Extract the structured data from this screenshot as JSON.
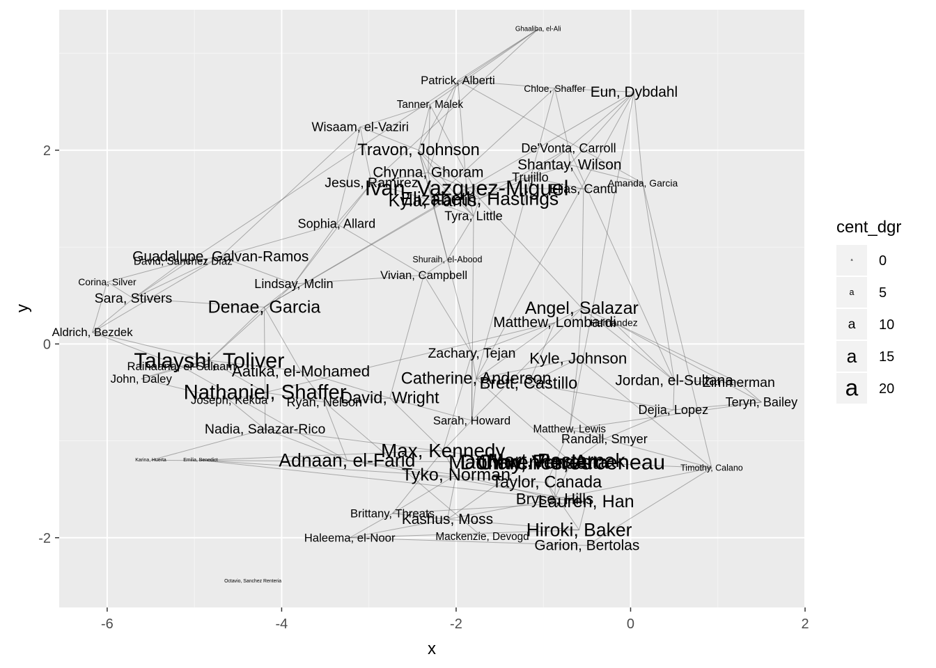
{
  "chart_data": {
    "type": "scatter",
    "title": "",
    "xlabel": "x",
    "ylabel": "y",
    "xlim": [
      -6.55,
      2.0
    ],
    "ylim": [
      -2.72,
      3.45
    ],
    "x_ticks": [
      -6,
      -4,
      -2,
      0,
      2
    ],
    "x_tick_labels": [
      "-6",
      "-4",
      "-2",
      "0",
      "2"
    ],
    "y_ticks": [
      -2,
      0,
      2
    ],
    "y_tick_labels": [
      "-2",
      "0",
      "2"
    ],
    "grid": true,
    "legend": {
      "title": "cent_dgr",
      "position": "right",
      "glyph": "a",
      "entries": [
        {
          "label": "0",
          "size": 0
        },
        {
          "label": "5",
          "size": 5
        },
        {
          "label": "10",
          "size": 10
        },
        {
          "label": "15",
          "size": 15
        },
        {
          "label": "20",
          "size": 20
        }
      ]
    },
    "nodes": [
      {
        "label": "Ghaaliba, el-Ali",
        "x": -1.06,
        "y": 3.25,
        "size": 3
      },
      {
        "label": "Patrick, Alberti",
        "x": -1.98,
        "y": 2.72,
        "size": 8
      },
      {
        "label": "Chloe, Shaffer",
        "x": -0.87,
        "y": 2.64,
        "size": 6
      },
      {
        "label": "Eun, Dybdahl",
        "x": 0.04,
        "y": 2.6,
        "size": 11
      },
      {
        "label": "Tanner, Malek",
        "x": -2.3,
        "y": 2.47,
        "size": 7
      },
      {
        "label": "Wisaam, el-Vaziri",
        "x": -3.1,
        "y": 2.24,
        "size": 9
      },
      {
        "label": "Travon, Johnson",
        "x": -2.43,
        "y": 2.0,
        "size": 13
      },
      {
        "label": "De'Vonta, Carroll",
        "x": -0.71,
        "y": 2.02,
        "size": 9
      },
      {
        "label": "Shantay, Wilson",
        "x": -0.7,
        "y": 1.85,
        "size": 11
      },
      {
        "label": "Chynna, Ghoram",
        "x": -2.32,
        "y": 1.77,
        "size": 11
      },
      {
        "label": "Trujillo",
        "x": -1.15,
        "y": 1.72,
        "size": 9
      },
      {
        "label": "Amanda, Garcia",
        "x": 0.14,
        "y": 1.66,
        "size": 6
      },
      {
        "label": "Jesus, Ramirez",
        "x": -2.97,
        "y": 1.66,
        "size": 10
      },
      {
        "label": "Ivan, Vazquez-Miguel",
        "x": -1.88,
        "y": 1.61,
        "size": 18
      },
      {
        "label": "Elias, Cantu",
        "x": -0.54,
        "y": 1.6,
        "size": 9
      },
      {
        "label": "Kyla, Farris",
        "x": -2.27,
        "y": 1.48,
        "size": 14
      },
      {
        "label": "Elizabeth, Hastings",
        "x": -1.73,
        "y": 1.5,
        "size": 15
      },
      {
        "label": "Tyra, Little",
        "x": -1.8,
        "y": 1.32,
        "size": 9
      },
      {
        "label": "Sophia, Allard",
        "x": -3.37,
        "y": 1.24,
        "size": 9
      },
      {
        "label": "Guadalupe, Galvan-Ramos",
        "x": -4.7,
        "y": 0.9,
        "size": 11
      },
      {
        "label": "David, Sanchez Diaz",
        "x": -5.13,
        "y": 0.85,
        "size": 7
      },
      {
        "label": "Shuraih, el-Abood",
        "x": -2.1,
        "y": 0.87,
        "size": 5
      },
      {
        "label": "Vivian, Campbell",
        "x": -2.37,
        "y": 0.71,
        "size": 8
      },
      {
        "label": "Corina, Silver",
        "x": -6.0,
        "y": 0.64,
        "size": 6
      },
      {
        "label": "Lindsay, Mclin",
        "x": -3.86,
        "y": 0.62,
        "size": 9
      },
      {
        "label": "Sara, Stivers",
        "x": -5.7,
        "y": 0.47,
        "size": 10
      },
      {
        "label": "Denae, Garcia",
        "x": -4.2,
        "y": 0.38,
        "size": 14
      },
      {
        "label": "Angel, Salazar",
        "x": -0.56,
        "y": 0.37,
        "size": 14
      },
      {
        "label": "Matthew, Lombardi",
        "x": -0.87,
        "y": 0.22,
        "size": 11
      },
      {
        "label": "Hernandez",
        "x": -0.19,
        "y": 0.22,
        "size": 6
      },
      {
        "label": "Aldrich, Bezdek",
        "x": -6.17,
        "y": 0.12,
        "size": 8
      },
      {
        "label": "Zachary, Tejan",
        "x": -1.82,
        "y": -0.1,
        "size": 10
      },
      {
        "label": "Kyle, Johnson",
        "x": -0.6,
        "y": -0.15,
        "size": 12
      },
      {
        "label": "Talayshi, Toliver",
        "x": -4.83,
        "y": -0.17,
        "size": 18
      },
      {
        "label": "Raihaana, el-Salaam",
        "x": -5.15,
        "y": -0.23,
        "size": 8
      },
      {
        "label": "Aatika, el-Mohamed",
        "x": -3.78,
        "y": -0.28,
        "size": 12
      },
      {
        "label": "Catherine, Anderson",
        "x": -1.77,
        "y": -0.36,
        "size": 13
      },
      {
        "label": "Jordan, el-Sultana",
        "x": 0.5,
        "y": -0.38,
        "size": 11
      },
      {
        "label": "Zimmerman",
        "x": 1.24,
        "y": -0.4,
        "size": 10
      },
      {
        "label": "John, Daley",
        "x": -5.61,
        "y": -0.36,
        "size": 8
      },
      {
        "label": "Brett, Castillo",
        "x": -1.17,
        "y": -0.41,
        "size": 13
      },
      {
        "label": "Nathaniel, Shaffer",
        "x": -4.19,
        "y": -0.5,
        "size": 17
      },
      {
        "label": "David, Wright",
        "x": -2.76,
        "y": -0.56,
        "size": 13
      },
      {
        "label": "Joseph, Kekua",
        "x": -4.6,
        "y": -0.58,
        "size": 8
      },
      {
        "label": "Ryan, Nelson",
        "x": -3.51,
        "y": -0.6,
        "size": 9
      },
      {
        "label": "Teryn, Bailey",
        "x": 1.5,
        "y": -0.6,
        "size": 9
      },
      {
        "label": "Dejia, Lopez",
        "x": 0.49,
        "y": -0.68,
        "size": 9
      },
      {
        "label": "Sarah, Howard",
        "x": -1.82,
        "y": -0.79,
        "size": 8
      },
      {
        "label": "Nadia, Salazar-Rico",
        "x": -4.19,
        "y": -0.88,
        "size": 10
      },
      {
        "label": "Matthew, Lewis",
        "x": -0.7,
        "y": -0.88,
        "size": 7
      },
      {
        "label": "Randall, Smyer",
        "x": -0.3,
        "y": -0.98,
        "size": 9
      },
      {
        "label": "Max, Kennedy",
        "x": -2.15,
        "y": -1.1,
        "size": 16
      },
      {
        "label": "Adnaan, el-Farid",
        "x": -3.25,
        "y": -1.2,
        "size": 15
      },
      {
        "label": "Matthew, Vendetta",
        "x": -1.17,
        "y": -1.22,
        "size": 16
      },
      {
        "label": "Karina, Huerta",
        "x": -5.5,
        "y": -1.2,
        "size": 1
      },
      {
        "label": "Emilia, Benedict",
        "x": -4.93,
        "y": -1.2,
        "size": 1
      },
      {
        "label": "Donny, Flores",
        "x": -1.2,
        "y": -1.22,
        "size": 18
      },
      {
        "label": "Mart, Pasternak",
        "x": -0.85,
        "y": -1.2,
        "size": 16
      },
      {
        "label": "Clarence, Arceneau",
        "x": -0.68,
        "y": -1.22,
        "size": 18
      },
      {
        "label": "Timothy, Calano",
        "x": 0.93,
        "y": -1.28,
        "size": 5
      },
      {
        "label": "Tyko, Norman",
        "x": -2.0,
        "y": -1.35,
        "size": 14
      },
      {
        "label": "Taylor, Canada",
        "x": -0.96,
        "y": -1.43,
        "size": 13
      },
      {
        "label": "Bryse, Hills",
        "x": -0.87,
        "y": -1.6,
        "size": 12
      },
      {
        "label": "Lauren, Han",
        "x": -0.51,
        "y": -1.63,
        "size": 14
      },
      {
        "label": "Brittany, Threats",
        "x": -2.73,
        "y": -1.75,
        "size": 8
      },
      {
        "label": "Kashus, Moss",
        "x": -2.1,
        "y": -1.81,
        "size": 11
      },
      {
        "label": "Hiroki, Baker",
        "x": -0.59,
        "y": -1.92,
        "size": 15
      },
      {
        "label": "Haleema, el-Noor",
        "x": -3.22,
        "y": -2.0,
        "size": 8
      },
      {
        "label": "Mackenzie, Devogd",
        "x": -1.7,
        "y": -1.99,
        "size": 7
      },
      {
        "label": "Garion, Bertolas",
        "x": -0.5,
        "y": -2.08,
        "size": 11
      },
      {
        "label": "Octavio, Sanchez Renteria",
        "x": -4.33,
        "y": -2.45,
        "size": 1
      }
    ],
    "edges": [
      [
        0,
        1
      ],
      [
        0,
        4
      ],
      [
        0,
        12
      ],
      [
        0,
        25
      ],
      [
        1,
        2
      ],
      [
        1,
        6
      ],
      [
        1,
        13
      ],
      [
        1,
        9
      ],
      [
        2,
        3
      ],
      [
        2,
        7
      ],
      [
        2,
        15
      ],
      [
        3,
        7
      ],
      [
        3,
        8
      ],
      [
        3,
        26
      ],
      [
        3,
        11
      ],
      [
        3,
        36
      ],
      [
        4,
        5
      ],
      [
        4,
        6
      ],
      [
        4,
        9
      ],
      [
        4,
        16
      ],
      [
        5,
        6
      ],
      [
        5,
        12
      ],
      [
        5,
        18
      ],
      [
        6,
        9
      ],
      [
        6,
        13
      ],
      [
        6,
        15
      ],
      [
        6,
        17
      ],
      [
        7,
        8
      ],
      [
        7,
        10
      ],
      [
        7,
        16
      ],
      [
        8,
        10
      ],
      [
        8,
        14
      ],
      [
        8,
        11
      ],
      [
        9,
        12
      ],
      [
        9,
        13
      ],
      [
        9,
        15
      ],
      [
        9,
        17
      ],
      [
        10,
        13
      ],
      [
        10,
        14
      ],
      [
        10,
        16
      ],
      [
        11,
        14
      ],
      [
        11,
        37
      ],
      [
        12,
        15
      ],
      [
        12,
        18
      ],
      [
        13,
        14
      ],
      [
        13,
        16
      ],
      [
        13,
        17
      ],
      [
        13,
        26
      ],
      [
        15,
        16
      ],
      [
        15,
        17
      ],
      [
        15,
        21
      ],
      [
        16,
        17
      ],
      [
        16,
        27
      ],
      [
        17,
        21
      ],
      [
        18,
        19
      ],
      [
        18,
        22
      ],
      [
        18,
        24
      ],
      [
        19,
        20
      ],
      [
        19,
        24
      ],
      [
        19,
        25
      ],
      [
        19,
        30
      ],
      [
        20,
        23
      ],
      [
        20,
        25
      ],
      [
        21,
        22
      ],
      [
        21,
        31
      ],
      [
        22,
        24
      ],
      [
        22,
        42
      ],
      [
        23,
        25
      ],
      [
        23,
        30
      ],
      [
        24,
        26
      ],
      [
        24,
        33
      ],
      [
        25,
        26
      ],
      [
        25,
        30
      ],
      [
        26,
        33
      ],
      [
        26,
        35
      ],
      [
        26,
        41
      ],
      [
        27,
        28
      ],
      [
        27,
        29
      ],
      [
        27,
        32
      ],
      [
        27,
        37
      ],
      [
        28,
        31
      ],
      [
        28,
        36
      ],
      [
        28,
        40
      ],
      [
        29,
        37
      ],
      [
        29,
        38
      ],
      [
        30,
        33
      ],
      [
        30,
        34
      ],
      [
        31,
        36
      ],
      [
        31,
        47
      ],
      [
        32,
        36
      ],
      [
        32,
        40
      ],
      [
        32,
        49
      ],
      [
        33,
        34
      ],
      [
        33,
        35
      ],
      [
        33,
        39
      ],
      [
        33,
        41
      ],
      [
        34,
        39
      ],
      [
        35,
        42
      ],
      [
        35,
        44
      ],
      [
        36,
        40
      ],
      [
        36,
        47
      ],
      [
        37,
        38
      ],
      [
        37,
        46
      ],
      [
        38,
        45
      ],
      [
        39,
        43
      ],
      [
        40,
        46
      ],
      [
        40,
        50
      ],
      [
        41,
        43
      ],
      [
        41,
        44
      ],
      [
        41,
        48
      ],
      [
        42,
        44
      ],
      [
        42,
        47
      ],
      [
        42,
        51
      ],
      [
        43,
        48
      ],
      [
        44,
        52
      ],
      [
        45,
        46
      ],
      [
        46,
        50
      ],
      [
        47,
        51
      ],
      [
        48,
        52
      ],
      [
        48,
        53
      ],
      [
        48,
        54
      ],
      [
        49,
        50
      ],
      [
        49,
        57
      ],
      [
        50,
        58
      ],
      [
        50,
        59
      ],
      [
        51,
        55
      ],
      [
        51,
        60
      ],
      [
        51,
        64
      ],
      [
        52,
        60
      ],
      [
        52,
        63
      ],
      [
        53,
        54
      ],
      [
        56,
        57
      ],
      [
        56,
        58
      ],
      [
        57,
        61
      ],
      [
        57,
        62
      ],
      [
        58,
        59
      ],
      [
        58,
        62
      ],
      [
        59,
        62
      ],
      [
        60,
        64
      ],
      [
        60,
        65
      ],
      [
        61,
        62
      ],
      [
        61,
        66
      ],
      [
        62,
        63
      ],
      [
        62,
        67
      ],
      [
        63,
        66
      ],
      [
        64,
        65
      ],
      [
        64,
        67
      ],
      [
        65,
        66
      ],
      [
        66,
        67
      ],
      [
        67,
        69
      ],
      [
        55,
        61
      ],
      [
        55,
        63
      ],
      [
        44,
        68
      ],
      [
        1,
        11
      ],
      [
        6,
        21
      ],
      [
        14,
        27
      ],
      [
        7,
        37
      ],
      [
        5,
        19
      ],
      [
        22,
        31
      ],
      [
        28,
        41
      ],
      [
        27,
        47
      ],
      [
        12,
        24
      ],
      [
        17,
        47
      ],
      [
        2,
        36
      ],
      [
        29,
        45
      ],
      [
        34,
        52
      ],
      [
        49,
        45
      ],
      [
        63,
        64
      ],
      [
        59,
        69
      ],
      [
        65,
        53
      ],
      [
        60,
        62
      ],
      [
        11,
        59
      ],
      [
        3,
        49
      ],
      [
        32,
        59
      ],
      [
        36,
        58
      ],
      [
        31,
        51
      ]
    ]
  }
}
